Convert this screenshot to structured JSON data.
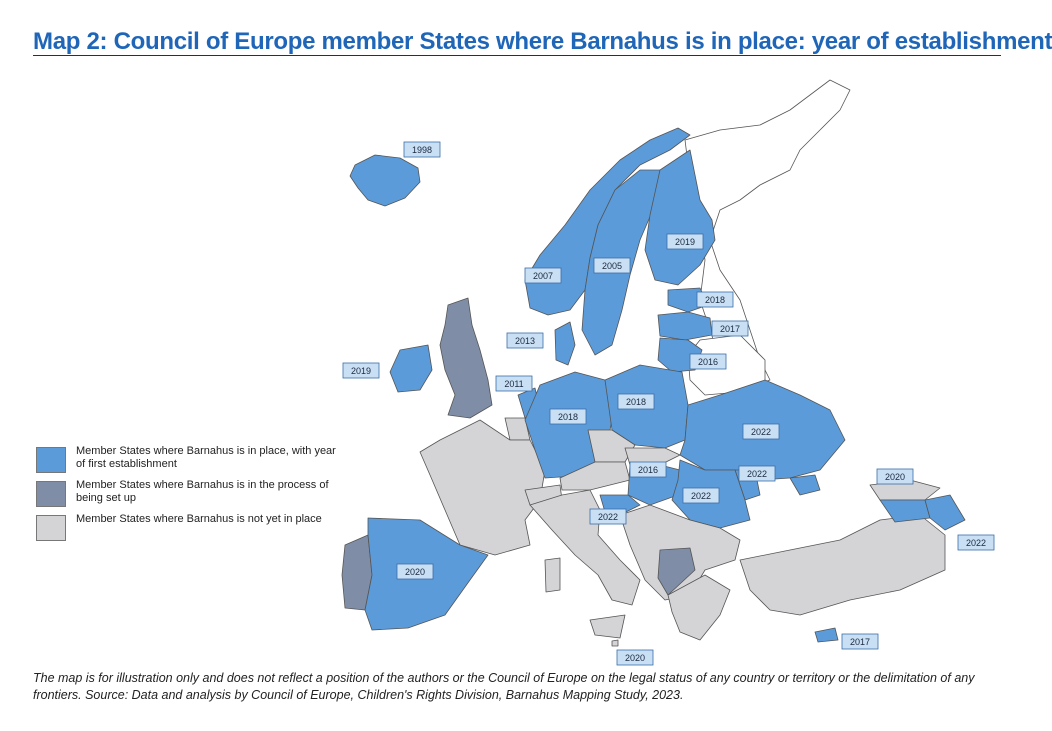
{
  "title": "Map 2: Council of Europe member States where Barnahus is in place: year of establishment",
  "colors": {
    "in_place": "#5b9bd9",
    "setting_up": "#7f8ea6",
    "not_yet": "#d4d3d5",
    "non_member": "#ffffff",
    "title": "#1f66b8"
  },
  "legend": [
    {
      "label": "Member States where Barnahus is in place, with year of first establishment",
      "color": "#5b9bd9"
    },
    {
      "label": "Member States where Barnahus is in the process of being set up",
      "color": "#7f8ea6"
    },
    {
      "label": "Member States where Barnahus is not yet in place",
      "color": "#d4d3d5"
    }
  ],
  "year_labels": {
    "iceland": "1998",
    "finland": "2019",
    "norway": "2007",
    "sweden": "2005",
    "estonia": "2018",
    "latvia": "2017",
    "lithuania": "2016",
    "denmark": "2013",
    "ireland": "2019",
    "netherlands": "2011",
    "germany": "2018",
    "poland": "2018",
    "ukraine": "2022",
    "moldova": "2022",
    "hungary": "2016",
    "romania": "2022",
    "croatia": "2022",
    "spain": "2020",
    "armenia": "2020",
    "azerbaijan": "2022",
    "malta": "2020",
    "cyprus": "2017"
  },
  "note": "The map is for illustration only and does not reflect a position of the authors or the Council of Europe on the legal status of any country or territory or the delimitation of any frontiers. Source: Data and analysis by Council of Europe, Children's Rights Division, Barnahus Mapping Study, 2023."
}
